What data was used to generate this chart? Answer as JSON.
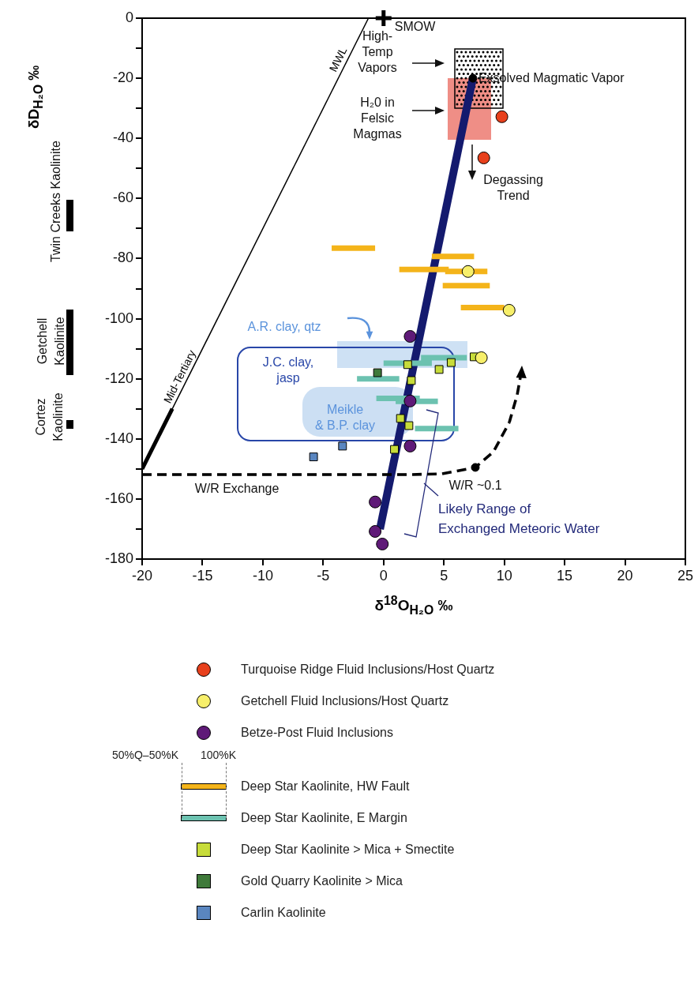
{
  "chart_data": {
    "type": "scatter",
    "xlabel": "δ$^{18}$O$_{H₂O}$ ‰",
    "ylabel": "δD$_{H₂O}$ ‰",
    "xlim": [
      -20,
      25
    ],
    "xticks": [
      -20,
      -15,
      -10,
      -5,
      0,
      5,
      10,
      15,
      20,
      25
    ],
    "ylim": [
      -180,
      0
    ],
    "yticks": [
      0,
      {
        "value": -10,
        "label": null
      },
      -20,
      {
        "value": -30,
        "label": null
      },
      -40,
      {
        "value": -50,
        "label": null
      },
      -60,
      {
        "value": -70,
        "label": null
      },
      -80,
      {
        "value": -90,
        "label": null
      },
      -100,
      {
        "value": -110,
        "label": null
      },
      -120,
      {
        "value": -130,
        "label": null
      },
      -140,
      {
        "value": -150,
        "label": null
      },
      -160,
      {
        "value": -170,
        "label": null
      },
      -180
    ],
    "grid": false,
    "legend": "bottom",
    "series": [
      {
        "type": "scatter",
        "name": "Turquoise Ridge Fluid Inclusions/Host Quartz",
        "color": "#e8401c",
        "marker": "circle",
        "x": [
          9.8,
          8.3
        ],
        "values": [
          -32.8,
          -46.5
        ]
      },
      {
        "type": "scatter",
        "name": "Getchell Fluid Inclusions/Host Quartz",
        "color": "#f7ef6a",
        "marker": "circle",
        "x": [
          7.0,
          10.4,
          8.1
        ],
        "values": [
          -84.3,
          -97.2,
          -113
        ]
      },
      {
        "type": "scatter",
        "name": "Betze-Post Fluid Inclusions",
        "color": "#5f1a78",
        "marker": "circle",
        "x": [
          2.2,
          2.2,
          2.2,
          -0.7,
          -0.7,
          -0.1
        ],
        "values": [
          -105.9,
          -127.4,
          -142.4,
          -161,
          -170.8,
          -175
        ]
      },
      {
        "type": "line",
        "name": "Deep Star Kaolinite, HW Fault",
        "color": "#f4b41a",
        "line_style": "solid",
        "x": [
          -4.3,
          -0.7,
          null,
          4.0,
          7.5,
          null,
          1.3,
          5.4,
          null,
          5.1,
          8.6,
          null,
          4.9,
          8.8,
          null,
          6.4,
          10.0
        ],
        "values": [
          -76.5,
          -76.5,
          null,
          -79.3,
          -79.3,
          null,
          -83.6,
          -83.6,
          null,
          -84.3,
          -84.3,
          null,
          -89,
          -89,
          null,
          -96.3,
          -96.3
        ]
      },
      {
        "type": "line",
        "name": "Deep Star Kaolinite, E Margin",
        "color": "#6cc2b0",
        "line_style": "solid",
        "x": [
          3.1,
          6.9,
          null,
          0.0,
          4.0,
          null,
          -2.2,
          1.3,
          null,
          -0.6,
          3.0,
          null,
          1.0,
          4.5,
          null,
          2.6,
          6.2
        ],
        "values": [
          -113,
          -113,
          null,
          -114.8,
          -114.8,
          null,
          -120,
          -120,
          null,
          -126.5,
          -126.5,
          null,
          -127.5,
          -127.5,
          null,
          -136.6,
          -136.6
        ]
      },
      {
        "type": "scatter",
        "name": "Deep Star Kaolinite > Mica + Smectite",
        "color": "#c7dc3a",
        "marker": "square",
        "x": [
          2.0,
          2.3,
          1.4,
          2.1,
          0.9,
          5.6,
          4.6,
          7.5
        ],
        "values": [
          -115.3,
          -120.6,
          -133.2,
          -135.6,
          -143.5,
          -114.6,
          -116.9,
          -112.7
        ]
      },
      {
        "type": "scatter",
        "name": "Gold Quarry Kaolinite > Mica",
        "color": "#3f7a3a",
        "marker": "square",
        "x": [
          -0.5
        ],
        "values": [
          -118
        ]
      },
      {
        "type": "scatter",
        "name": "Carlin Kaolinite",
        "color": "#5a86c0",
        "marker": "square",
        "x": [
          -3.4,
          -5.8
        ],
        "values": [
          -142.4,
          -146
        ]
      },
      {
        "type": "scatter",
        "color": "#000000",
        "marker": "circle",
        "x": [
          7.4,
          7.6
        ],
        "values": [
          -20,
          -149.5
        ]
      },
      {
        "type": "scatter",
        "color": "#000000",
        "marker": "cross",
        "x": [
          0
        ],
        "values": [
          0
        ]
      },
      {
        "type": "line",
        "name": "MWL",
        "color": "#000000",
        "line_style": "solid",
        "x": [
          -20,
          -1.25
        ],
        "values": [
          -150,
          0
        ]
      },
      {
        "type": "line",
        "name": "Mid-Tertiary",
        "color": "#000000",
        "line_style": "solid",
        "x": [
          -20,
          -17.5
        ],
        "values": [
          -150,
          -130
        ]
      },
      {
        "type": "line",
        "color": "#141a6e",
        "line_style": "solid",
        "x": [
          -0.3,
          7.4
        ],
        "values": [
          -170,
          -20
        ]
      }
    ],
    "annotations": [
      {
        "text": "SMOW",
        "x": 0,
        "y": 0
      },
      "High-\nTemp\nVapors",
      "H₂0 in\nFelsic\nMagmas",
      {
        "text": "Exsolved Magmatic Vapor",
        "x": 7.4,
        "y": -20
      },
      "Degassing\nTrend",
      "A.R. clay, qtz",
      "J.C. clay,\njasp",
      "Meikle\n& B.P. clay",
      "W/R Exchange",
      {
        "text": "W/R ~0.1",
        "x": 7.6,
        "y": -149.5
      },
      "Likely Range of\nExchanged Meteoric Water",
      "Twin Creeks Kaolinite",
      "Getchell\nKaolinite",
      "Cortez\nKaolinite",
      "50%Q–50%K",
      "100%K"
    ]
  }
}
